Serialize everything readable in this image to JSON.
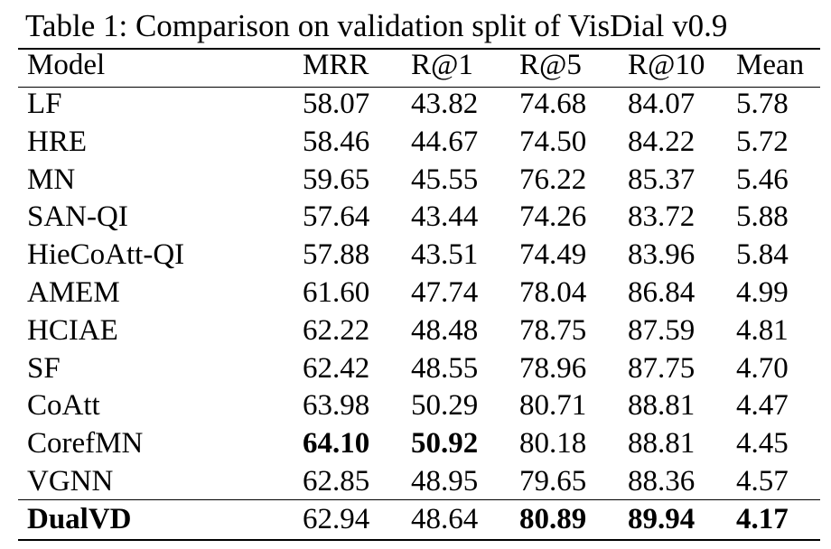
{
  "title": "Table 1: Comparison on validation split of VisDial v0.9",
  "table": {
    "header": [
      "Model",
      "MRR",
      "R@1",
      "R@5",
      "R@10",
      "Mean"
    ],
    "rows": [
      [
        "LF",
        "58.07",
        "43.82",
        "74.68",
        "84.07",
        "5.78"
      ],
      [
        "HRE",
        "58.46",
        "44.67",
        "74.50",
        "84.22",
        "5.72"
      ],
      [
        "MN",
        "59.65",
        "45.55",
        "76.22",
        "85.37",
        "5.46"
      ],
      [
        "SAN-QI",
        "57.64",
        "43.44",
        "74.26",
        "83.72",
        "5.88"
      ],
      [
        "HieCoAtt-QI",
        "57.88",
        "43.51",
        "74.49",
        "83.96",
        "5.84"
      ],
      [
        "AMEM",
        "61.60",
        "47.74",
        "78.04",
        "86.84",
        "4.99"
      ],
      [
        "HCIAE",
        "62.22",
        "48.48",
        "78.75",
        "87.59",
        "4.81"
      ],
      [
        "SF",
        "62.42",
        "48.55",
        "78.96",
        "87.75",
        "4.70"
      ],
      [
        "CoAtt",
        "63.98",
        "50.29",
        "80.71",
        "88.81",
        "4.47"
      ],
      [
        "CorefMN",
        "64.10",
        "50.92",
        "80.18",
        "88.81",
        "4.45"
      ],
      [
        "VGNN",
        "62.85",
        "48.95",
        "79.65",
        "88.36",
        "4.57"
      ],
      [
        "DualVD",
        "62.94",
        "48.64",
        "80.89",
        "89.94",
        "4.17"
      ]
    ],
    "bold_cells": [
      [
        9,
        1
      ],
      [
        9,
        2
      ],
      [
        11,
        0
      ],
      [
        11,
        3
      ],
      [
        11,
        4
      ],
      [
        11,
        5
      ]
    ]
  }
}
